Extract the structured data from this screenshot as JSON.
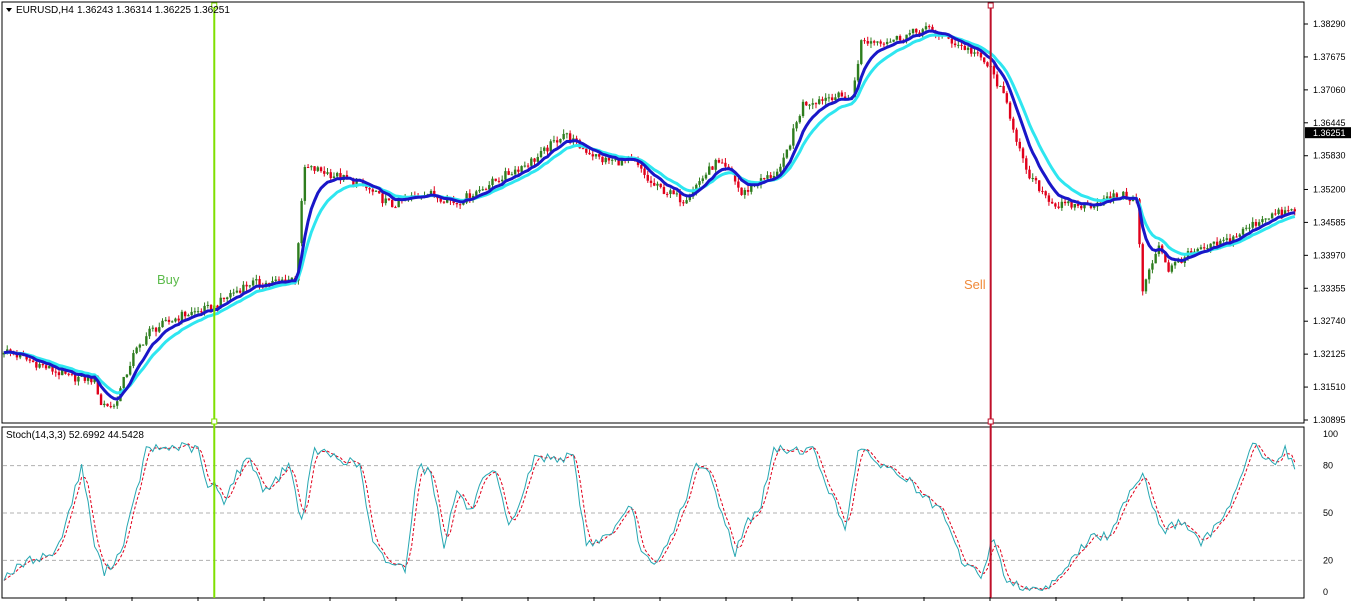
{
  "chart_data": {
    "type": "candlestick",
    "header": {
      "symbol_label": "EURUSD,H4",
      "ohlc_label": "1.36243 1.36314 1.36225 1.36251"
    },
    "price_axis": {
      "ylim": [
        1.30895,
        1.3829
      ],
      "ticks": [
        "1.38290",
        "1.37675",
        "1.37060",
        "1.36445",
        "1.35830",
        "1.35200",
        "1.34585",
        "1.33970",
        "1.33355",
        "1.32740",
        "1.32125",
        "1.31510",
        "1.30895"
      ],
      "current_price": "1.36251",
      "current_price_value": 1.36251
    },
    "colors": {
      "bull": "#2e7d1e",
      "bear": "#e0001b",
      "ma_fast": "#1a16c8",
      "ma_slow": "#2ee6f0",
      "buy": "#7fe000",
      "sell": "#c0102a",
      "stoch_main": "#27a7b2",
      "stoch_signal": "#e0001b",
      "buy_text": "#5bbb4a",
      "sell_text": "#f08a3a"
    },
    "signals": [
      {
        "name": "buy",
        "label": "Buy",
        "bar": 65
      },
      {
        "name": "sell",
        "label": "Sell",
        "bar": 305
      }
    ],
    "price_waypoints": [
      [
        0,
        1.322
      ],
      [
        10,
        1.3195
      ],
      [
        20,
        1.317
      ],
      [
        28,
        1.3165
      ],
      [
        30,
        1.312
      ],
      [
        34,
        1.3115
      ],
      [
        40,
        1.321
      ],
      [
        45,
        1.3255
      ],
      [
        55,
        1.3285
      ],
      [
        65,
        1.33
      ],
      [
        70,
        1.3325
      ],
      [
        76,
        1.3345
      ],
      [
        82,
        1.3345
      ],
      [
        90,
        1.3355
      ],
      [
        93,
        1.356
      ],
      [
        98,
        1.3555
      ],
      [
        110,
        1.353
      ],
      [
        120,
        1.349
      ],
      [
        130,
        1.3515
      ],
      [
        140,
        1.3495
      ],
      [
        150,
        1.353
      ],
      [
        165,
        1.358
      ],
      [
        173,
        1.3625
      ],
      [
        178,
        1.36
      ],
      [
        185,
        1.3575
      ],
      [
        195,
        1.357
      ],
      [
        200,
        1.353
      ],
      [
        210,
        1.35
      ],
      [
        220,
        1.357
      ],
      [
        225,
        1.355
      ],
      [
        228,
        1.351
      ],
      [
        232,
        1.353
      ],
      [
        240,
        1.3555
      ],
      [
        247,
        1.368
      ],
      [
        256,
        1.3695
      ],
      [
        262,
        1.369
      ],
      [
        265,
        1.3795
      ],
      [
        275,
        1.38
      ],
      [
        285,
        1.382
      ],
      [
        292,
        1.38
      ],
      [
        300,
        1.3775
      ],
      [
        305,
        1.3745
      ],
      [
        310,
        1.368
      ],
      [
        316,
        1.355
      ],
      [
        325,
        1.349
      ],
      [
        335,
        1.349
      ],
      [
        345,
        1.351
      ],
      [
        350,
        1.35
      ],
      [
        352,
        1.333
      ],
      [
        357,
        1.342
      ],
      [
        360,
        1.337
      ],
      [
        365,
        1.3395
      ],
      [
        372,
        1.341
      ],
      [
        380,
        1.343
      ],
      [
        390,
        1.347
      ],
      [
        398,
        1.348
      ]
    ],
    "stochastic": {
      "label": "Stoch(14,3,3) 52.6992 44.5428",
      "ylim": [
        0,
        100
      ],
      "levels": [
        20,
        50,
        80
      ],
      "tick_labels": [
        "100",
        "80",
        "50",
        "20",
        "0"
      ],
      "main_waypoints": [
        [
          0,
          10
        ],
        [
          8,
          20
        ],
        [
          16,
          25
        ],
        [
          20,
          50
        ],
        [
          24,
          80
        ],
        [
          28,
          30
        ],
        [
          31,
          12
        ],
        [
          36,
          25
        ],
        [
          40,
          55
        ],
        [
          44,
          90
        ],
        [
          55,
          92
        ],
        [
          60,
          90
        ],
        [
          63,
          65
        ],
        [
          65,
          68
        ],
        [
          68,
          58
        ],
        [
          72,
          75
        ],
        [
          76,
          85
        ],
        [
          80,
          65
        ],
        [
          84,
          70
        ],
        [
          88,
          82
        ],
        [
          92,
          45
        ],
        [
          96,
          90
        ],
        [
          110,
          80
        ],
        [
          114,
          30
        ],
        [
          118,
          20
        ],
        [
          124,
          15
        ],
        [
          128,
          80
        ],
        [
          132,
          75
        ],
        [
          136,
          30
        ],
        [
          140,
          65
        ],
        [
          144,
          50
        ],
        [
          148,
          70
        ],
        [
          152,
          75
        ],
        [
          156,
          40
        ],
        [
          160,
          60
        ],
        [
          164,
          85
        ],
        [
          176,
          85
        ],
        [
          180,
          30
        ],
        [
          186,
          35
        ],
        [
          191,
          45
        ],
        [
          194,
          55
        ],
        [
          197,
          25
        ],
        [
          201,
          15
        ],
        [
          205,
          30
        ],
        [
          210,
          55
        ],
        [
          214,
          80
        ],
        [
          218,
          75
        ],
        [
          222,
          50
        ],
        [
          226,
          25
        ],
        [
          230,
          45
        ],
        [
          234,
          55
        ],
        [
          238,
          90
        ],
        [
          250,
          90
        ],
        [
          256,
          60
        ],
        [
          260,
          40
        ],
        [
          264,
          90
        ],
        [
          272,
          80
        ],
        [
          280,
          70
        ],
        [
          284,
          60
        ],
        [
          290,
          50
        ],
        [
          296,
          20
        ],
        [
          302,
          10
        ],
        [
          306,
          35
        ],
        [
          310,
          5
        ],
        [
          322,
          2
        ],
        [
          330,
          20
        ],
        [
          336,
          35
        ],
        [
          342,
          35
        ],
        [
          348,
          65
        ],
        [
          352,
          75
        ],
        [
          358,
          38
        ],
        [
          364,
          45
        ],
        [
          370,
          30
        ],
        [
          376,
          45
        ],
        [
          382,
          70
        ],
        [
          386,
          95
        ],
        [
          392,
          80
        ],
        [
          396,
          90
        ],
        [
          400,
          75
        ],
        [
          404,
          70
        ]
      ]
    }
  }
}
